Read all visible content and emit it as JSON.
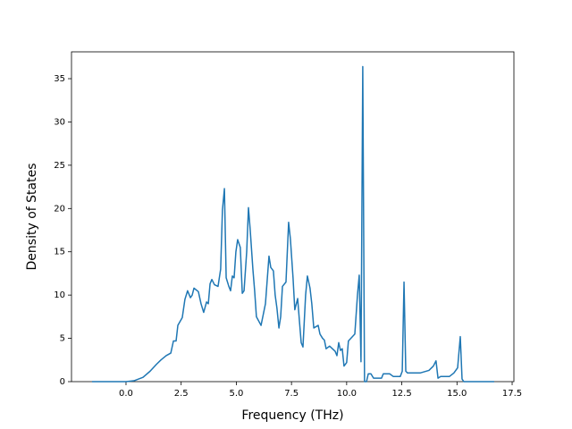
{
  "chart_data": {
    "type": "line",
    "x_label": "Frequency (THz)",
    "y_label": "Density of States",
    "xlim": [
      -2.47,
      17.58
    ],
    "ylim": [
      0,
      38.1
    ],
    "xticks": [
      {
        "value": 0,
        "label": "0.0"
      },
      2.5,
      {
        "value": 5,
        "label": "5.0"
      },
      7.5,
      {
        "value": 10,
        "label": "10.0"
      },
      12.5,
      {
        "value": 15,
        "label": "15.0"
      },
      17.5
    ],
    "yticks": [
      0,
      5,
      10,
      15,
      20,
      25,
      30,
      35
    ],
    "grid": false,
    "series": [
      {
        "color": "#1f77b4",
        "x": [
          -1.54,
          0,
          0.36,
          0.77,
          1.09,
          1.38,
          1.58,
          1.82,
          2.03,
          2.15,
          2.27,
          2.35,
          2.55,
          2.67,
          2.79,
          2.92,
          3.0,
          3.08,
          3.28,
          3.4,
          3.52,
          3.65,
          3.73,
          3.81,
          3.89,
          4.01,
          4.17,
          4.29,
          4.37,
          4.46,
          4.54,
          4.66,
          4.74,
          4.82,
          4.9,
          4.98,
          5.06,
          5.18,
          5.27,
          5.35,
          5.47,
          5.55,
          5.63,
          5.75,
          5.83,
          5.91,
          6.12,
          6.2,
          6.32,
          6.48,
          6.56,
          6.68,
          6.76,
          6.84,
          6.93,
          7.01,
          7.09,
          7.25,
          7.37,
          7.45,
          7.57,
          7.65,
          7.78,
          7.86,
          7.94,
          8.02,
          8.14,
          8.22,
          8.34,
          8.42,
          8.51,
          8.71,
          8.79,
          8.91,
          8.99,
          9.07,
          9.23,
          9.48,
          9.56,
          9.64,
          9.72,
          9.8,
          9.88,
          10.0,
          10.08,
          10.37,
          10.49,
          10.57,
          10.65,
          10.73,
          10.81,
          10.9,
          10.98,
          11.1,
          11.22,
          11.58,
          11.66,
          11.95,
          12.11,
          12.43,
          12.52,
          12.6,
          12.68,
          12.76,
          13.33,
          13.73,
          13.93,
          14.05,
          14.14,
          14.26,
          14.66,
          14.86,
          15.03,
          15.15,
          15.23,
          15.31,
          16.69
        ],
        "values": [
          0,
          0,
          0.1,
          0.5,
          1.2,
          2.0,
          2.5,
          3.0,
          3.3,
          4.7,
          4.7,
          6.5,
          7.4,
          9.5,
          10.5,
          9.7,
          10.0,
          10.8,
          10.4,
          9.0,
          8.0,
          9.2,
          9.0,
          11.3,
          11.8,
          11.2,
          11.0,
          13.0,
          19.8,
          22.3,
          12.0,
          11.0,
          10.5,
          12.2,
          12.0,
          15.0,
          16.4,
          15.5,
          10.2,
          10.5,
          15.0,
          20.1,
          17.5,
          13.0,
          10.5,
          7.5,
          6.5,
          7.5,
          9.0,
          14.5,
          13.2,
          12.8,
          10.0,
          8.5,
          6.2,
          7.5,
          11.0,
          11.5,
          18.4,
          16.5,
          12.0,
          8.3,
          9.6,
          7.0,
          4.5,
          4.0,
          10.0,
          12.2,
          10.8,
          9.0,
          6.2,
          6.5,
          5.5,
          5.0,
          4.8,
          3.8,
          4.1,
          3.5,
          3.0,
          4.5,
          3.6,
          3.8,
          1.8,
          2.2,
          4.7,
          5.5,
          10.0,
          12.3,
          2.3,
          36.4,
          0,
          0,
          0.9,
          0.9,
          0.4,
          0.4,
          0.9,
          0.9,
          0.6,
          0.6,
          1.2,
          11.5,
          1.2,
          1.0,
          1.0,
          1.3,
          1.8,
          2.4,
          0.4,
          0.6,
          0.6,
          1.0,
          1.6,
          5.2,
          0.3,
          0,
          0
        ]
      }
    ]
  }
}
